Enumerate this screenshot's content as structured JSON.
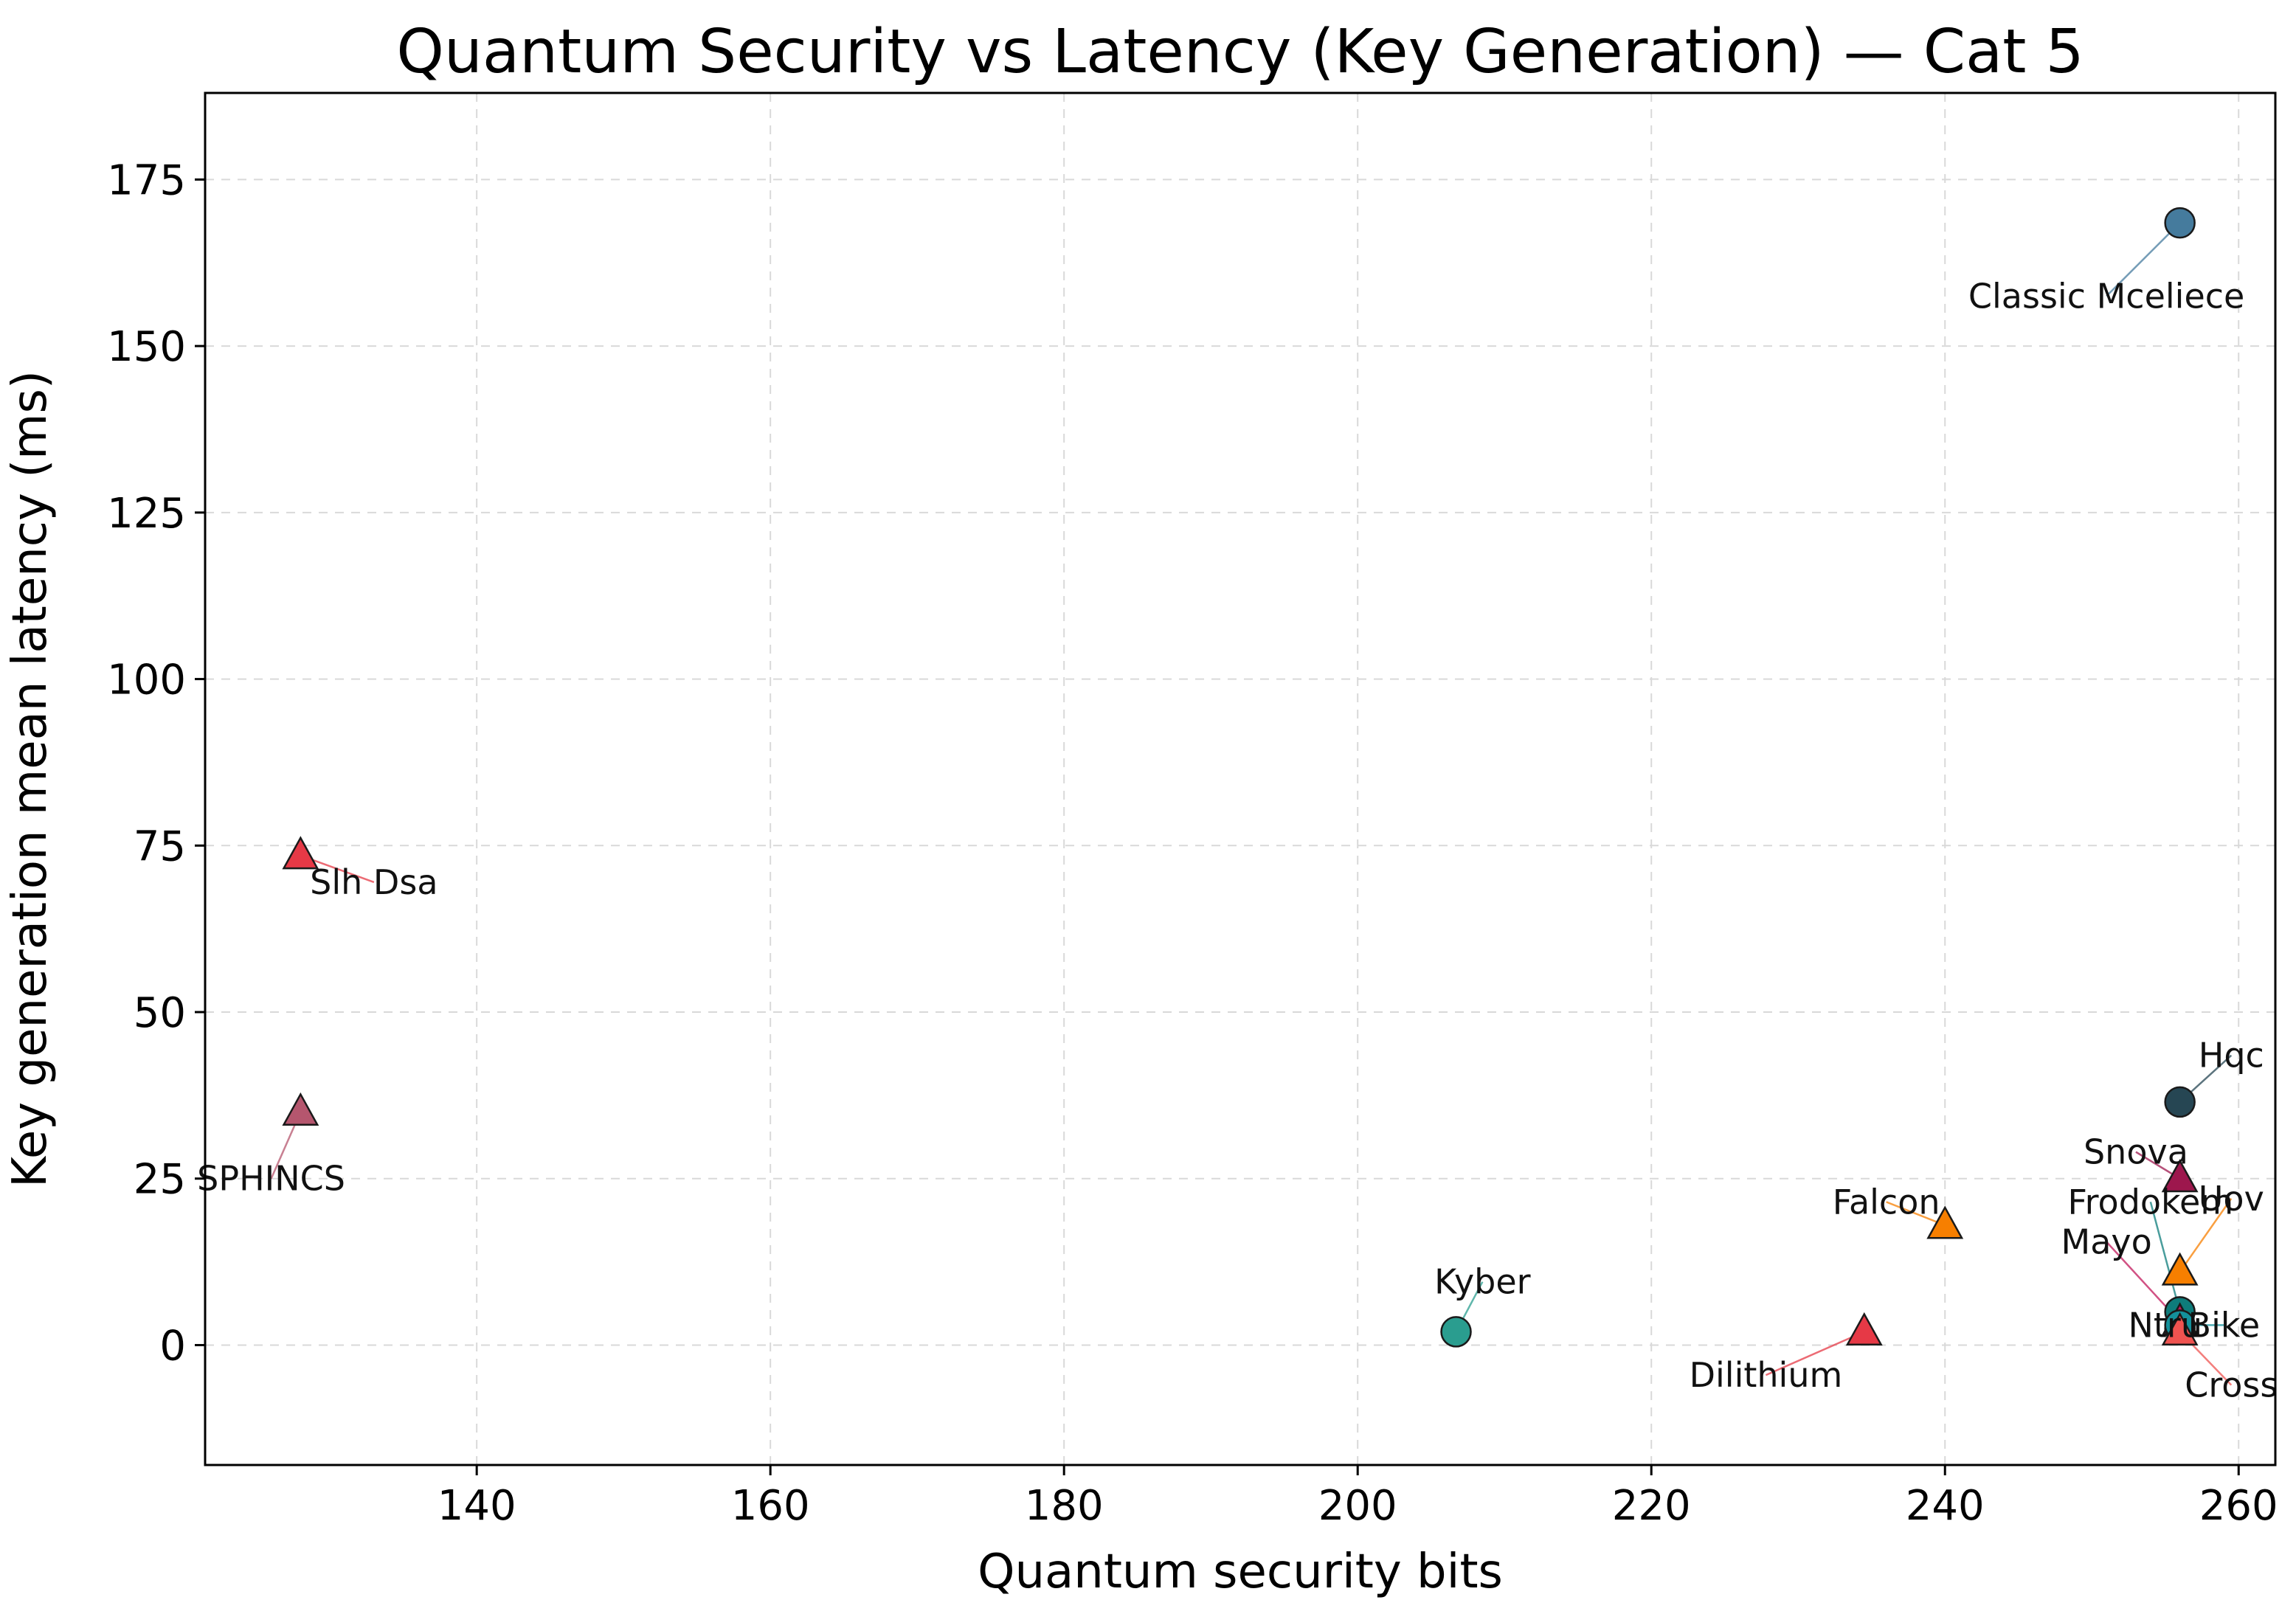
{
  "chart_data": {
    "type": "scatter",
    "title": "Quantum Security vs Latency (Key Generation) — Cat 5",
    "xlabel": "Quantum security bits",
    "ylabel": "Key generation mean latency (ms)",
    "xlim": [
      121.5,
      262.5
    ],
    "ylim": [
      -18,
      188
    ],
    "xticks": [
      140,
      160,
      180,
      200,
      220,
      240,
      260
    ],
    "yticks": [
      0,
      25,
      50,
      75,
      100,
      125,
      150,
      175
    ],
    "grid": true,
    "points": [
      {
        "label": "Classic Mceliece",
        "x": 256,
        "y": 168.5,
        "marker": "circle",
        "color": "#457b9d",
        "label_pos": [
          251,
          157.5
        ]
      },
      {
        "label": "Slh Dsa",
        "x": 128,
        "y": 73.5,
        "marker": "triangle",
        "color": "#e63946",
        "label_pos": [
          133,
          69.5
        ]
      },
      {
        "label": "SPHINCS",
        "x": 128,
        "y": 35,
        "marker": "triangle",
        "color": "#b5566e",
        "label_pos": [
          126,
          25
        ]
      },
      {
        "label": "Hqc",
        "x": 256,
        "y": 36.5,
        "marker": "circle",
        "color": "#264653",
        "label_pos": [
          259.5,
          43.5
        ]
      },
      {
        "label": "Snova",
        "x": 256,
        "y": 25,
        "marker": "triangle",
        "color": "#9d174d",
        "label_pos": [
          253,
          29
        ]
      },
      {
        "label": "Uov",
        "x": 256,
        "y": 11,
        "marker": "triangle",
        "color": "#f77f00",
        "label_pos": [
          259.5,
          22
        ]
      },
      {
        "label": "Frodokem",
        "x": 256,
        "y": 5,
        "marker": "circle",
        "color": "#0e7c7b",
        "label_pos": [
          254,
          21.5
        ]
      },
      {
        "label": "Mayo",
        "x": 256,
        "y": 3.5,
        "marker": "triangle",
        "color": "#c2185b",
        "label_pos": [
          251,
          15.5
        ]
      },
      {
        "label": "Ntru",
        "x": 256,
        "y": 2.5,
        "marker": "circle",
        "color": "#1d3557",
        "label_pos": [
          255,
          3
        ]
      },
      {
        "label": "Bike",
        "x": 256,
        "y": 3,
        "marker": "circle",
        "color": "#14919b",
        "label_pos": [
          259,
          3
        ]
      },
      {
        "label": "Cross",
        "x": 256,
        "y": 2,
        "marker": "triangle",
        "color": "#ef5350",
        "label_pos": [
          259.5,
          -6
        ]
      },
      {
        "label": "Falcon",
        "x": 240,
        "y": 18,
        "marker": "triangle",
        "color": "#f77f00",
        "label_pos": [
          236,
          21.5
        ]
      },
      {
        "label": "Kyber",
        "x": 206.7,
        "y": 2,
        "marker": "circle",
        "color": "#2a9d8f",
        "label_pos": [
          208.5,
          9.5
        ]
      },
      {
        "label": "Dilithium",
        "x": 234.5,
        "y": 2,
        "marker": "triangle",
        "color": "#e63946",
        "label_pos": [
          227.8,
          -4.5
        ]
      }
    ]
  }
}
